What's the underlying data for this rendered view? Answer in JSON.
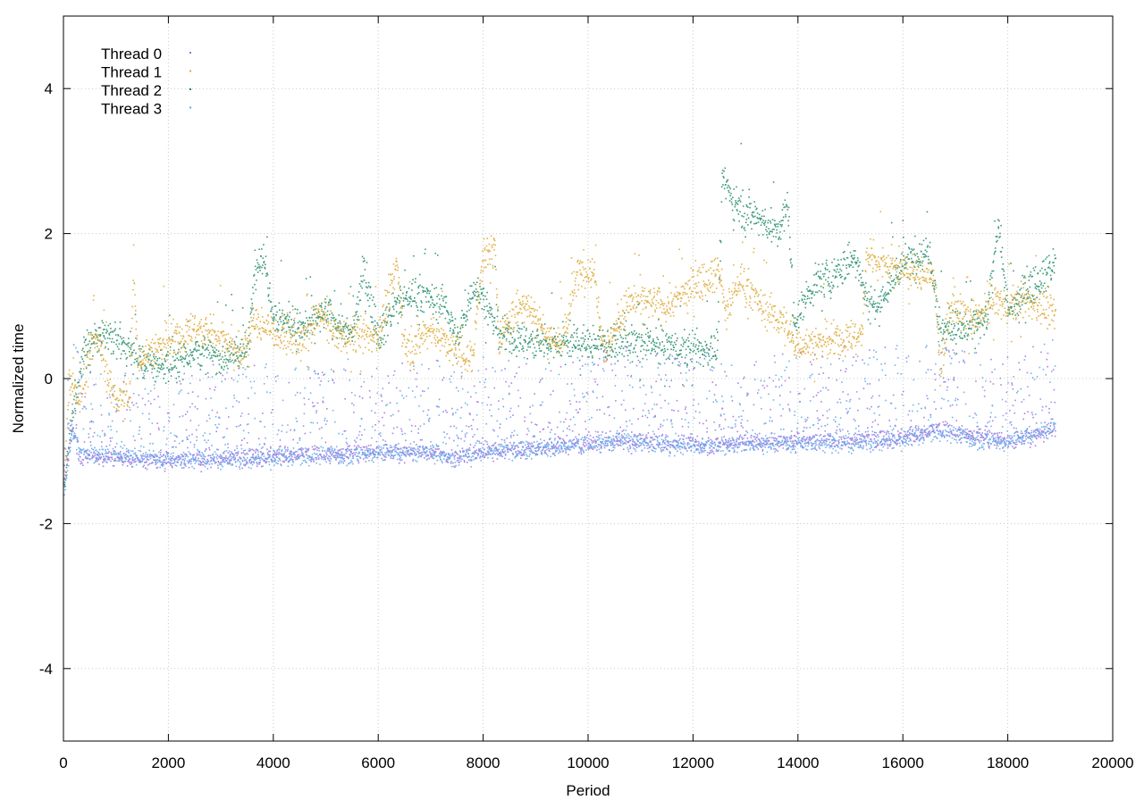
{
  "chart_data": {
    "type": "scatter",
    "title": "",
    "xlabel": "Period",
    "ylabel": "Normalized time",
    "xlim": [
      0,
      20000
    ],
    "ylim": [
      -5,
      5
    ],
    "xticks": [
      0,
      2000,
      4000,
      6000,
      8000,
      10000,
      12000,
      14000,
      16000,
      18000,
      20000
    ],
    "yticks": [
      -4,
      -2,
      0,
      2,
      4
    ],
    "grid": true,
    "legend_position": "top-left",
    "series": [
      {
        "name": "Thread 0",
        "color": "#9a6fe0",
        "x_range": [
          0,
          18900
        ],
        "trend": [
          [
            0,
            -1.5
          ],
          [
            150,
            -0.6
          ],
          [
            300,
            -1.05
          ],
          [
            1000,
            -1.1
          ],
          [
            2000,
            -1.12
          ],
          [
            3000,
            -1.1
          ],
          [
            4000,
            -1.05
          ],
          [
            5000,
            -1.05
          ],
          [
            6000,
            -1.0
          ],
          [
            7000,
            -1.0
          ],
          [
            7400,
            -1.08
          ],
          [
            8000,
            -1.0
          ],
          [
            9000,
            -0.95
          ],
          [
            10000,
            -0.9
          ],
          [
            10500,
            -0.85
          ],
          [
            12000,
            -0.9
          ],
          [
            13000,
            -0.88
          ],
          [
            14000,
            -0.85
          ],
          [
            15000,
            -0.85
          ],
          [
            16000,
            -0.8
          ],
          [
            16700,
            -0.7
          ],
          [
            17000,
            -0.75
          ],
          [
            18000,
            -0.85
          ],
          [
            18900,
            -0.7
          ]
        ]
      },
      {
        "name": "Thread 1",
        "color": "#dba832",
        "x_range": [
          0,
          18900
        ],
        "trend": [
          [
            0,
            -1.5
          ],
          [
            100,
            0.0
          ],
          [
            300,
            -0.3
          ],
          [
            500,
            0.5
          ],
          [
            700,
            0.5
          ],
          [
            900,
            -0.2
          ],
          [
            1250,
            -0.3
          ],
          [
            1330,
            1.6
          ],
          [
            1400,
            0.3
          ],
          [
            2000,
            0.5
          ],
          [
            2500,
            0.7
          ],
          [
            3000,
            0.6
          ],
          [
            3400,
            0.3
          ],
          [
            3600,
            0.8
          ],
          [
            4200,
            0.6
          ],
          [
            4500,
            0.5
          ],
          [
            4900,
            0.9
          ],
          [
            5200,
            0.6
          ],
          [
            6000,
            0.6
          ],
          [
            6350,
            1.6
          ],
          [
            6500,
            0.4
          ],
          [
            7000,
            0.7
          ],
          [
            7400,
            0.4
          ],
          [
            7800,
            0.3
          ],
          [
            7950,
            1.6
          ],
          [
            8200,
            1.8
          ],
          [
            8300,
            0.6
          ],
          [
            8800,
            1.1
          ],
          [
            9200,
            0.6
          ],
          [
            9500,
            0.5
          ],
          [
            9800,
            1.5
          ],
          [
            10100,
            1.5
          ],
          [
            10300,
            0.4
          ],
          [
            10800,
            1.1
          ],
          [
            11500,
            1.0
          ],
          [
            12000,
            1.3
          ],
          [
            12500,
            1.5
          ],
          [
            12600,
            0.9
          ],
          [
            12900,
            1.4
          ],
          [
            13300,
            1.0
          ],
          [
            13700,
            0.8
          ],
          [
            13900,
            0.5
          ],
          [
            14500,
            0.5
          ],
          [
            15200,
            0.6
          ],
          [
            15300,
            1.7
          ],
          [
            16000,
            1.5
          ],
          [
            16600,
            1.4
          ],
          [
            16700,
            0.1
          ],
          [
            16900,
            1.0
          ],
          [
            17400,
            0.8
          ],
          [
            17700,
            1.1
          ],
          [
            18000,
            1.0
          ],
          [
            18300,
            1.1
          ],
          [
            18900,
            0.9
          ]
        ]
      },
      {
        "name": "Thread 2",
        "color": "#1f8a66",
        "x_range": [
          0,
          18900
        ],
        "trend": [
          [
            0,
            -1.5
          ],
          [
            200,
            -0.3
          ],
          [
            400,
            0.5
          ],
          [
            900,
            0.6
          ],
          [
            1400,
            0.3
          ],
          [
            1700,
            0.2
          ],
          [
            2000,
            0.2
          ],
          [
            2500,
            0.4
          ],
          [
            3000,
            0.3
          ],
          [
            3500,
            0.4
          ],
          [
            3650,
            1.6
          ],
          [
            3800,
            1.7
          ],
          [
            4000,
            0.9
          ],
          [
            4500,
            0.7
          ],
          [
            5000,
            0.9
          ],
          [
            5500,
            0.6
          ],
          [
            5700,
            1.5
          ],
          [
            6000,
            0.6
          ],
          [
            6300,
            1.0
          ],
          [
            6700,
            1.2
          ],
          [
            7300,
            1.0
          ],
          [
            7500,
            0.5
          ],
          [
            7800,
            1.3
          ],
          [
            8000,
            1.1
          ],
          [
            8300,
            0.6
          ],
          [
            9000,
            0.5
          ],
          [
            10000,
            0.5
          ],
          [
            11000,
            0.5
          ],
          [
            12000,
            0.4
          ],
          [
            12450,
            0.4
          ],
          [
            12550,
            2.8
          ],
          [
            12800,
            2.4
          ],
          [
            13300,
            2.2
          ],
          [
            13600,
            2.0
          ],
          [
            13800,
            2.4
          ],
          [
            13900,
            0.8
          ],
          [
            14300,
            1.3
          ],
          [
            14800,
            1.5
          ],
          [
            15100,
            1.7
          ],
          [
            15300,
            1.1
          ],
          [
            15500,
            1.0
          ],
          [
            16000,
            1.6
          ],
          [
            16500,
            1.8
          ],
          [
            16700,
            0.7
          ],
          [
            17200,
            0.7
          ],
          [
            17600,
            0.8
          ],
          [
            17800,
            2.2
          ],
          [
            18000,
            0.9
          ],
          [
            18300,
            1.2
          ],
          [
            18600,
            1.4
          ],
          [
            18900,
            1.6
          ]
        ]
      },
      {
        "name": "Thread 3",
        "color": "#5ea8ea",
        "x_range": [
          0,
          18900
        ],
        "trend": [
          [
            0,
            -1.6
          ],
          [
            150,
            -0.7
          ],
          [
            300,
            -1.0
          ],
          [
            1000,
            -1.05
          ],
          [
            2000,
            -1.1
          ],
          [
            3000,
            -1.12
          ],
          [
            4000,
            -1.08
          ],
          [
            5000,
            -1.05
          ],
          [
            6000,
            -1.02
          ],
          [
            7000,
            -1.0
          ],
          [
            7400,
            -1.1
          ],
          [
            8000,
            -1.0
          ],
          [
            9000,
            -0.95
          ],
          [
            10000,
            -0.92
          ],
          [
            10500,
            -0.85
          ],
          [
            12000,
            -0.92
          ],
          [
            13000,
            -0.9
          ],
          [
            14000,
            -0.88
          ],
          [
            15000,
            -0.9
          ],
          [
            16000,
            -0.82
          ],
          [
            16700,
            -0.72
          ],
          [
            17000,
            -0.78
          ],
          [
            18000,
            -0.88
          ],
          [
            18900,
            -0.65
          ]
        ]
      }
    ],
    "legend": [
      "Thread 0",
      "Thread 1",
      "Thread 2",
      "Thread 3"
    ]
  }
}
